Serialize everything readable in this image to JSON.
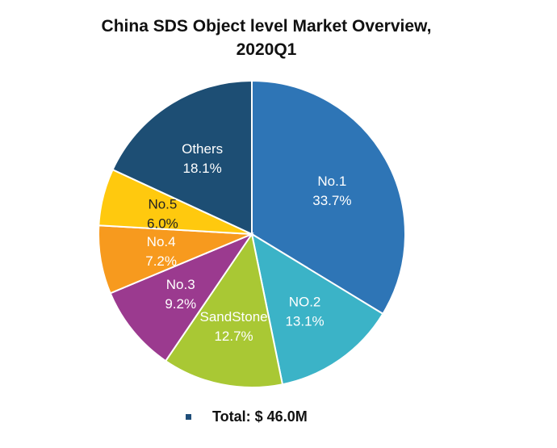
{
  "title": {
    "line1": "China SDS Object level Market Overview,",
    "line2": "2020Q1"
  },
  "chart_data": {
    "type": "pie",
    "slices": [
      {
        "label": "No.1",
        "value": 33.7,
        "display": "33.7%",
        "color": "#2e75b6"
      },
      {
        "label": "NO.2",
        "value": 13.1,
        "display": "13.1%",
        "color": "#3bb3c7"
      },
      {
        "label": "SandStone",
        "value": 12.7,
        "display": "12.7%",
        "color": "#a9c834"
      },
      {
        "label": "No.3",
        "value": 9.2,
        "display": "9.2%",
        "color": "#9b3a8f"
      },
      {
        "label": "No.4",
        "value": 7.2,
        "display": "7.2%",
        "color": "#f79a1e"
      },
      {
        "label": "No.5",
        "value": 6.0,
        "display": "6.0%",
        "color": "#ffc90e"
      },
      {
        "label": "Others",
        "value": 18.1,
        "display": "18.1%",
        "color": "#1d4e74"
      }
    ],
    "label_colors": {
      "No.1": "#ffffff",
      "NO.2": "#ffffff",
      "SandStone": "#ffffff",
      "No.3": "#ffffff",
      "No.4": "#ffffff",
      "No.5": "#222222",
      "Others": "#ffffff"
    }
  },
  "footer": {
    "total": "Total: $ 46.0M",
    "bullet_color": "#1f4e79"
  }
}
